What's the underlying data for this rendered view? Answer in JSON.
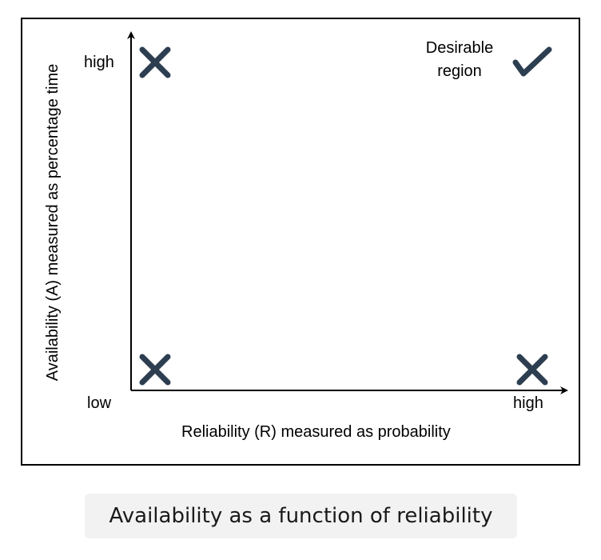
{
  "diagram": {
    "y_axis_label": "Availability (A) measured as percentage time",
    "x_axis_label": "Reliability (R) measured as probability",
    "y_high": "high",
    "origin_low": "low",
    "x_high": "high",
    "desirable_region": [
      "Desirable",
      "region"
    ],
    "quadrant_marks": {
      "low_reliability_high_availability": "cross",
      "low_reliability_low_availability": "cross",
      "high_reliability_low_availability": "cross",
      "high_reliability_high_availability": "check"
    },
    "colors": {
      "mark": "#2c3e50",
      "axis": "#000000"
    }
  },
  "caption": "Availability as a function of reliability"
}
